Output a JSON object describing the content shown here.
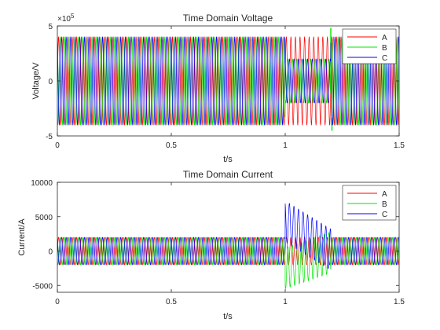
{
  "chart_data": [
    {
      "type": "line",
      "title": "Time Domain Voltage",
      "xlabel": "t/s",
      "ylabel": "Voltage/V",
      "xlim": [
        0,
        1.5
      ],
      "ylim": [
        -500000,
        500000
      ],
      "xticks": [
        0,
        0.5,
        1,
        1.5
      ],
      "xtick_labels": [
        "0",
        "0.5",
        "1",
        "1.5"
      ],
      "yticks": [
        -500000,
        0,
        500000
      ],
      "ytick_labels": [
        "-5",
        "0",
        "5"
      ],
      "y_exponent_label": "×10",
      "y_exponent_power": "5",
      "grid": false,
      "legend": "top-right",
      "frequency_hz": 50,
      "series": [
        {
          "name": "A",
          "color": "#ff0000",
          "phase_deg": 0,
          "segments": [
            {
              "t_start": 0,
              "t_end": 1.0,
              "amplitude": 400000
            },
            {
              "t_start": 1.0,
              "t_end": 1.2,
              "amplitude": 400000
            },
            {
              "t_start": 1.2,
              "t_end": 1.5,
              "amplitude": 400000
            }
          ]
        },
        {
          "name": "B",
          "color": "#00e600",
          "phase_deg": -120,
          "segments": [
            {
              "t_start": 0,
              "t_end": 1.0,
              "amplitude": 400000
            },
            {
              "t_start": 1.0,
              "t_end": 1.2,
              "amplitude": 200000
            },
            {
              "t_start": 1.2,
              "t_end": 1.5,
              "amplitude": 400000
            }
          ]
        },
        {
          "name": "C",
          "color": "#0000ff",
          "phase_deg": 120,
          "segments": [
            {
              "t_start": 0,
              "t_end": 1.0,
              "amplitude": 400000
            },
            {
              "t_start": 1.0,
              "t_end": 1.2,
              "amplitude": 200000
            },
            {
              "t_start": 1.2,
              "t_end": 1.5,
              "amplitude": 400000
            }
          ]
        }
      ],
      "transient_spikes": [
        {
          "series": "B",
          "t": 1.2,
          "value": 480000
        },
        {
          "series": "B",
          "t": 1.205,
          "value": -450000
        }
      ]
    },
    {
      "type": "line",
      "title": "Time Domain Current",
      "xlabel": "t/s",
      "ylabel": "Current/A",
      "xlim": [
        0,
        1.5
      ],
      "ylim": [
        -6000,
        10000
      ],
      "xticks": [
        0,
        0.5,
        1,
        1.5
      ],
      "xtick_labels": [
        "0",
        "0.5",
        "1",
        "1.5"
      ],
      "yticks": [
        -5000,
        0,
        5000,
        10000
      ],
      "ytick_labels": [
        "-5000",
        "0",
        "5000",
        "10000"
      ],
      "grid": false,
      "legend": "top-right",
      "frequency_hz": 50,
      "series": [
        {
          "name": "A",
          "color": "#ff0000",
          "phase_deg": 0,
          "segments": [
            {
              "t_start": 0,
              "t_end": 1.0,
              "amplitude": 2000
            },
            {
              "t_start": 1.0,
              "t_end": 1.2,
              "amplitude": 2000
            },
            {
              "t_start": 1.2,
              "t_end": 1.5,
              "amplitude": 2000
            }
          ]
        },
        {
          "name": "B",
          "color": "#00e600",
          "phase_deg": -120,
          "segments": [
            {
              "t_start": 0,
              "t_end": 1.0,
              "amplitude": 2000
            },
            {
              "t_start": 1.0,
              "t_end": 1.2,
              "amplitude": 3000,
              "offset_start": -2500,
              "offset_end": -200
            },
            {
              "t_start": 1.2,
              "t_end": 1.5,
              "amplitude": 2000
            }
          ]
        },
        {
          "name": "C",
          "color": "#0000ff",
          "phase_deg": 120,
          "segments": [
            {
              "t_start": 0,
              "t_end": 1.0,
              "amplitude": 2000
            },
            {
              "t_start": 1.0,
              "t_end": 1.2,
              "amplitude": 3000,
              "offset_start": 4300,
              "offset_end": 200
            },
            {
              "t_start": 1.2,
              "t_end": 1.5,
              "amplitude": 2000
            }
          ]
        }
      ]
    }
  ]
}
